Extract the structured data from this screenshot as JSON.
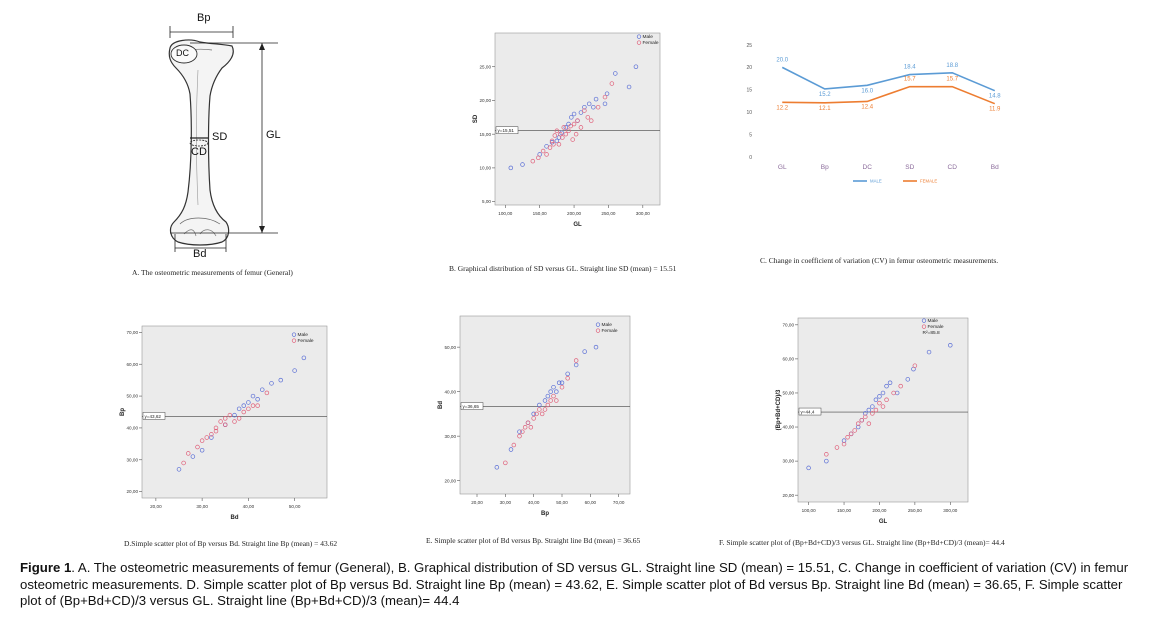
{
  "panel_a": {
    "labels": {
      "bp": "Bp",
      "dc": "DC",
      "sd": "SD",
      "cd": "CD",
      "gl": "GL",
      "bd": "Bd"
    },
    "caption": "A. The osteometric measurements of femur (General)"
  },
  "panel_b": {
    "caption": "B. Graphical distribution of SD versus GL. Straight line SD (mean) = 15.51"
  },
  "panel_c": {
    "caption": "C. Change in coefficient of variation (CV) in femur osteometric measurements."
  },
  "panel_d": {
    "caption": "D.Simple scatter plot of Bp versus Bd. Straight line Bp (mean) = 43.62"
  },
  "panel_e": {
    "caption": "E. Simple scatter plot of Bd versus Bp. Straight line Bd (mean) = 36.65"
  },
  "panel_f": {
    "caption": "F. Simple scatter plot of (Bp+Bd+CD)/3 versus GL. Straight line (Bp+Bd+CD)/3 (mean)= 44.4"
  },
  "figure_caption": {
    "label": "Figure 1",
    "text": ". A. The osteometric measurements of femur (General), B. Graphical distribution of SD versus GL. Straight line SD (mean) = 15.51, C. Change in coefficient of variation (CV) in femur osteometric measurements. D. Simple scatter plot of Bp versus Bd. Straight line Bp (mean) = 43.62, E. Simple scatter plot of Bd versus Bp. Straight line Bd (mean) = 36.65, F. Simple scatter plot of (Bp+Bd+CD)/3 versus GL. Straight line (Bp+Bd+CD)/3 (mean)= 44.4"
  },
  "colors": {
    "male": "#5b6fd6",
    "female": "#e0607a",
    "plot_bg": "#ebebeb",
    "cv_male": "#5b9bd5",
    "cv_female": "#ed7d31"
  },
  "chart_data": [
    {
      "id": "B",
      "type": "scatter",
      "xlabel": "GL",
      "ylabel": "SD",
      "xlim": [
        85,
        325
      ],
      "ylim": [
        4.5,
        30
      ],
      "xticks": [
        100,
        150,
        200,
        250,
        300
      ],
      "xtick_labels": [
        "100,00",
        "150,00",
        "200,00",
        "250,00",
        "300,00"
      ],
      "yticks": [
        5,
        10,
        15,
        20,
        25
      ],
      "ytick_labels": [
        "5,00",
        "10,00",
        "15,00",
        "20,00",
        "25,00"
      ],
      "refline": {
        "axis": "y",
        "value": 15.51,
        "label": "y=15,51"
      },
      "legend": [
        "Male",
        "Female"
      ],
      "series": [
        {
          "name": "Male",
          "points": [
            [
              108,
              10
            ],
            [
              125,
              10.5
            ],
            [
              150,
              12
            ],
            [
              160,
              13.2
            ],
            [
              168,
              13.8
            ],
            [
              175,
              14
            ],
            [
              178,
              14.5
            ],
            [
              182,
              15.2
            ],
            [
              188,
              16
            ],
            [
              192,
              16.5
            ],
            [
              196,
              17.5
            ],
            [
              200,
              18
            ],
            [
              205,
              17
            ],
            [
              210,
              18.2
            ],
            [
              215,
              19
            ],
            [
              222,
              19.5
            ],
            [
              228,
              19
            ],
            [
              232,
              20.2
            ],
            [
              245,
              19.5
            ],
            [
              248,
              21
            ],
            [
              260,
              24
            ],
            [
              280,
              22
            ],
            [
              290,
              25
            ]
          ]
        },
        {
          "name": "Female",
          "points": [
            [
              140,
              11
            ],
            [
              148,
              11.5
            ],
            [
              155,
              12.5
            ],
            [
              160,
              12
            ],
            [
              165,
              13
            ],
            [
              168,
              14
            ],
            [
              170,
              13.5
            ],
            [
              172,
              14.8
            ],
            [
              175,
              15.5
            ],
            [
              178,
              13.5
            ],
            [
              180,
              15
            ],
            [
              183,
              14.5
            ],
            [
              185,
              16
            ],
            [
              188,
              15
            ],
            [
              192,
              15.5
            ],
            [
              195,
              16.2
            ],
            [
              198,
              14.2
            ],
            [
              200,
              16.5
            ],
            [
              203,
              15
            ],
            [
              205,
              17
            ],
            [
              210,
              16
            ],
            [
              215,
              18.5
            ],
            [
              220,
              17.5
            ],
            [
              225,
              17
            ],
            [
              235,
              19
            ],
            [
              245,
              20.5
            ],
            [
              255,
              22.5
            ]
          ]
        }
      ]
    },
    {
      "id": "C",
      "type": "line",
      "categories": [
        "GL",
        "Bp",
        "DC",
        "SD",
        "CD",
        "Bd"
      ],
      "ylim": [
        0,
        25
      ],
      "yticks": [
        0,
        5,
        10,
        15,
        20,
        25
      ],
      "series": [
        {
          "name": "MALE",
          "values": [
            20.0,
            15.2,
            16.0,
            18.4,
            18.8,
            14.8
          ],
          "labels": [
            "20.0",
            "15.2",
            "16.0",
            "18.4",
            "18.8",
            "14.8"
          ]
        },
        {
          "name": "FEMALE",
          "values": [
            12.2,
            12.1,
            12.4,
            15.7,
            15.7,
            11.9
          ],
          "labels": [
            "12.2",
            "12.1",
            "12.4",
            "15.7",
            "15.7",
            "11.9"
          ]
        }
      ]
    },
    {
      "id": "D",
      "type": "scatter",
      "xlabel": "Bd",
      "ylabel": "Bp",
      "xlim": [
        17,
        57
      ],
      "ylim": [
        18,
        72
      ],
      "xticks": [
        20,
        30,
        40,
        50
      ],
      "xtick_labels": [
        "20,00",
        "30,00",
        "40,00",
        "50,00"
      ],
      "yticks": [
        20,
        30,
        40,
        50,
        60,
        70
      ],
      "ytick_labels": [
        "20,00",
        "30,00",
        "40,00",
        "50,00",
        "60,00",
        "70,00"
      ],
      "refline": {
        "axis": "y",
        "value": 43.62,
        "label": "y=43,62"
      },
      "legend": [
        "Male",
        "Female"
      ],
      "series": [
        {
          "name": "Male",
          "points": [
            [
              25,
              27
            ],
            [
              28,
              31
            ],
            [
              30,
              33
            ],
            [
              32,
              37
            ],
            [
              35,
              41
            ],
            [
              37,
              44
            ],
            [
              38,
              46
            ],
            [
              39,
              47
            ],
            [
              40,
              48
            ],
            [
              41,
              50
            ],
            [
              42,
              49
            ],
            [
              43,
              52
            ],
            [
              45,
              54
            ],
            [
              47,
              55
            ],
            [
              50,
              58
            ],
            [
              52,
              62
            ]
          ]
        },
        {
          "name": "Female",
          "points": [
            [
              26,
              29
            ],
            [
              27,
              32
            ],
            [
              29,
              34
            ],
            [
              30,
              36
            ],
            [
              31,
              37
            ],
            [
              32,
              38
            ],
            [
              33,
              39
            ],
            [
              33,
              40
            ],
            [
              34,
              42
            ],
            [
              35,
              41
            ],
            [
              35,
              43
            ],
            [
              36,
              44
            ],
            [
              37,
              42
            ],
            [
              38,
              43
            ],
            [
              39,
              45
            ],
            [
              40,
              46
            ],
            [
              41,
              47
            ],
            [
              42,
              47
            ],
            [
              44,
              51
            ]
          ]
        }
      ]
    },
    {
      "id": "E",
      "type": "scatter",
      "xlabel": "Bp",
      "ylabel": "Bd",
      "xlim": [
        14,
        74
      ],
      "ylim": [
        17,
        57
      ],
      "xticks": [
        20,
        30,
        40,
        50,
        60,
        70
      ],
      "xtick_labels": [
        "20,00",
        "30,00",
        "40,00",
        "50,00",
        "60,00",
        "70,00"
      ],
      "yticks": [
        20,
        30,
        40,
        50
      ],
      "ytick_labels": [
        "20,00",
        "30,00",
        "40,00",
        "50,00"
      ],
      "refline": {
        "axis": "y",
        "value": 36.65,
        "label": "y=36,65"
      },
      "legend": [
        "Male",
        "Female"
      ],
      "series": [
        {
          "name": "Male",
          "points": [
            [
              27,
              23
            ],
            [
              32,
              27
            ],
            [
              35,
              31
            ],
            [
              38,
              33
            ],
            [
              40,
              35
            ],
            [
              42,
              37
            ],
            [
              44,
              38
            ],
            [
              45,
              39
            ],
            [
              46,
              40
            ],
            [
              47,
              41
            ],
            [
              48,
              40
            ],
            [
              49,
              42
            ],
            [
              50,
              42
            ],
            [
              52,
              44
            ],
            [
              55,
              46
            ],
            [
              58,
              49
            ],
            [
              62,
              50
            ]
          ]
        },
        {
          "name": "Female",
          "points": [
            [
              30,
              24
            ],
            [
              33,
              28
            ],
            [
              35,
              30
            ],
            [
              36,
              31
            ],
            [
              37,
              32
            ],
            [
              38,
              33
            ],
            [
              39,
              32
            ],
            [
              40,
              34
            ],
            [
              41,
              35
            ],
            [
              42,
              36
            ],
            [
              43,
              35
            ],
            [
              44,
              36
            ],
            [
              45,
              37
            ],
            [
              46,
              38
            ],
            [
              47,
              39
            ],
            [
              48,
              38
            ],
            [
              50,
              41
            ],
            [
              52,
              43
            ],
            [
              55,
              47
            ]
          ]
        }
      ]
    },
    {
      "id": "F",
      "type": "scatter",
      "xlabel": "GL",
      "ylabel": "(Bp+Bd+CD)/3",
      "xlim": [
        85,
        325
      ],
      "ylim": [
        18,
        72
      ],
      "xticks": [
        100,
        150,
        200,
        250,
        300
      ],
      "xtick_labels": [
        "100,00",
        "150,00",
        "200,00",
        "250,00",
        "300,00"
      ],
      "yticks": [
        20,
        30,
        40,
        50,
        60,
        70
      ],
      "ytick_labels": [
        "20,00",
        "30,00",
        "40,00",
        "50,00",
        "60,00",
        "70,00"
      ],
      "refline": {
        "axis": "y",
        "value": 44.4,
        "label": "y=44,4"
      },
      "legend": [
        "Male",
        "Female",
        "R²=85.8"
      ],
      "series": [
        {
          "name": "Male",
          "points": [
            [
              100,
              28
            ],
            [
              125,
              30
            ],
            [
              150,
              36
            ],
            [
              160,
              38
            ],
            [
              170,
              40
            ],
            [
              175,
              42
            ],
            [
              180,
              44
            ],
            [
              185,
              45
            ],
            [
              190,
              46
            ],
            [
              195,
              48
            ],
            [
              200,
              49
            ],
            [
              205,
              50
            ],
            [
              210,
              52
            ],
            [
              215,
              53
            ],
            [
              225,
              50
            ],
            [
              240,
              54
            ],
            [
              248,
              57
            ],
            [
              270,
              62
            ],
            [
              300,
              64
            ]
          ]
        },
        {
          "name": "Female",
          "points": [
            [
              125,
              32
            ],
            [
              140,
              34
            ],
            [
              150,
              35
            ],
            [
              155,
              37
            ],
            [
              160,
              38
            ],
            [
              165,
              39
            ],
            [
              170,
              41
            ],
            [
              175,
              42
            ],
            [
              180,
              43
            ],
            [
              185,
              41
            ],
            [
              190,
              44
            ],
            [
              195,
              45
            ],
            [
              200,
              47
            ],
            [
              205,
              46
            ],
            [
              210,
              48
            ],
            [
              220,
              50
            ],
            [
              230,
              52
            ],
            [
              250,
              58
            ]
          ]
        }
      ]
    }
  ]
}
